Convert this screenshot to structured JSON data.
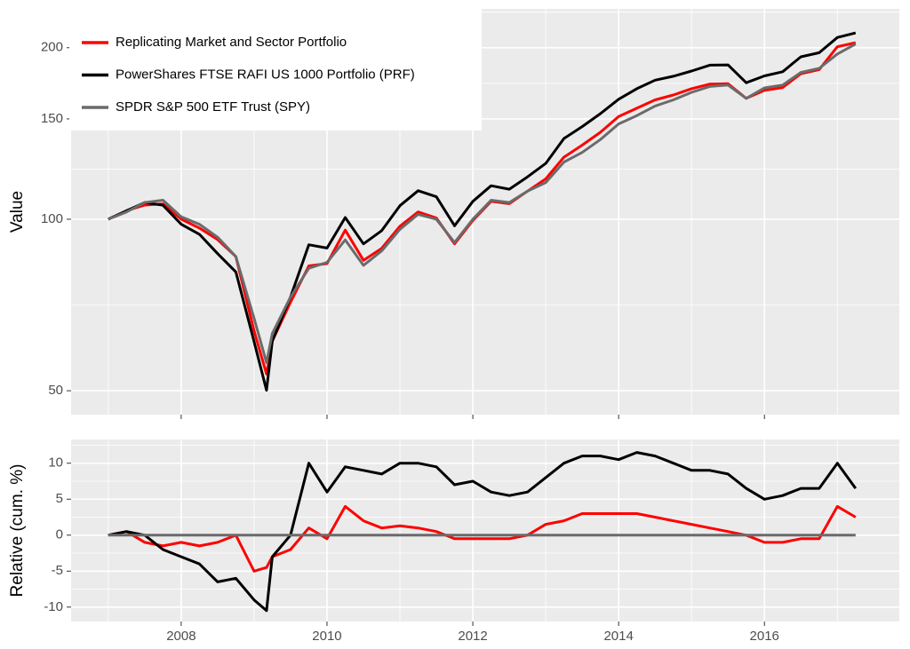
{
  "chart_data": [
    {
      "type": "line",
      "ylabel": "Value",
      "log_scale": true,
      "grid": true,
      "legend": "top-left",
      "xlim": [
        2006.49,
        2017.85
      ],
      "xticks": [
        2008,
        2010,
        2012,
        2014,
        2016
      ],
      "ylim": [
        45.4,
        234
      ],
      "yticks": [
        50,
        100,
        150,
        200
      ],
      "x": [
        2007,
        2007.25,
        2007.5,
        2007.75,
        2008,
        2008.25,
        2008.5,
        2008.75,
        2009,
        2009.17,
        2009.25,
        2009.5,
        2009.75,
        2010,
        2010.25,
        2010.5,
        2010.75,
        2011,
        2011.25,
        2011.5,
        2011.75,
        2012,
        2012.25,
        2012.5,
        2012.75,
        2013,
        2013.25,
        2013.5,
        2013.75,
        2014,
        2014.25,
        2014.5,
        2014.75,
        2015,
        2015.25,
        2015.5,
        2015.75,
        2016,
        2016.25,
        2016.5,
        2016.75,
        2017,
        2017.25
      ],
      "series": [
        {
          "name": "Replicating Market and Sector Portfolio",
          "color": "#ff0000",
          "values": [
            100,
            103.5,
            105.9,
            106.4,
            100,
            96.5,
            92.1,
            86,
            63.7,
            53.5,
            61.1,
            71.5,
            82.8,
            83.6,
            95.7,
            84.7,
            88.9,
            97.2,
            103,
            100.5,
            90.5,
            99.5,
            107.5,
            106.5,
            112,
            117.7,
            128.5,
            134.9,
            142.1,
            151.4,
            156.6,
            162,
            165.2,
            169.5,
            172.7,
            172.9,
            163,
            168.3,
            170.3,
            180.1,
            183.1,
            200.8,
            204.1
          ]
        },
        {
          "name": "PowerShares FTSE RAFI US 1000 Portfolio (PRF)",
          "color": "#000000",
          "values": [
            100,
            103.5,
            107,
            105.8,
            98,
            94.1,
            87,
            80.8,
            61,
            50.1,
            61.1,
            73,
            90.2,
            89,
            100.7,
            90.5,
            95.5,
            105.6,
            112.2,
            109.5,
            97.4,
            107.5,
            114.5,
            112.9,
            118.7,
            125.3,
            138.6,
            145.4,
            153.2,
            162.4,
            169.5,
            175.4,
            178.2,
            182,
            186.4,
            186.6,
            173.6,
            178.5,
            181.5,
            192.8,
            196,
            208.5,
            212.3
          ]
        },
        {
          "name": "SPDR S&P 500 ETF Trust (SPY)",
          "color": "#6b6b6b",
          "values": [
            100,
            103,
            107,
            108,
            101,
            98,
            93,
            86,
            67,
            56,
            63,
            73,
            82,
            84,
            92,
            83,
            88,
            96,
            102,
            100,
            91,
            100,
            108,
            107,
            112,
            116,
            126,
            131,
            138,
            147,
            152,
            158,
            162,
            167,
            171,
            172,
            163,
            170,
            172,
            181,
            184,
            195,
            203
          ]
        }
      ]
    },
    {
      "type": "line",
      "ylabel": "Relative (cum. %)",
      "grid": true,
      "xlim": [
        2006.49,
        2017.85
      ],
      "xticks": [
        2008,
        2010,
        2012,
        2014,
        2016
      ],
      "ylim": [
        -12,
        13.3
      ],
      "yticks": [
        -10,
        -5,
        0,
        5,
        10
      ],
      "x": [
        2007,
        2007.25,
        2007.5,
        2007.75,
        2008,
        2008.25,
        2008.5,
        2008.75,
        2009,
        2009.17,
        2009.25,
        2009.5,
        2009.75,
        2010,
        2010.25,
        2010.5,
        2010.75,
        2011,
        2011.25,
        2011.5,
        2011.75,
        2012,
        2012.25,
        2012.5,
        2012.75,
        2013,
        2013.25,
        2013.5,
        2013.75,
        2014,
        2014.25,
        2014.5,
        2014.75,
        2015,
        2015.25,
        2015.5,
        2015.75,
        2016,
        2016.25,
        2016.5,
        2016.75,
        2017,
        2017.25
      ],
      "series": [
        {
          "color": "#ff0000",
          "values": [
            0,
            0.5,
            -1,
            -1.5,
            -1,
            -1.5,
            -1,
            0,
            -5,
            -4.5,
            -3,
            -2,
            1,
            -0.5,
            4,
            2,
            1,
            1.3,
            1,
            0.5,
            -0.5,
            -0.5,
            -0.5,
            -0.5,
            0,
            1.5,
            2,
            3,
            3,
            3,
            3,
            2.5,
            2,
            1.5,
            1,
            0.5,
            0,
            -1,
            -1,
            -0.5,
            -0.5,
            4,
            2.5
          ]
        },
        {
          "color": "#000000",
          "values": [
            0,
            0.5,
            0,
            -2,
            -3,
            -4,
            -6.5,
            -6,
            -9,
            -10.5,
            -3,
            0,
            10,
            6,
            9.5,
            9,
            8.5,
            10,
            10,
            9.5,
            7,
            7.5,
            6,
            5.5,
            6,
            8,
            10,
            11,
            11,
            10.5,
            11.5,
            11,
            10,
            9,
            9,
            8.5,
            6.5,
            5,
            5.5,
            6.5,
            6.5,
            10,
            6.5
          ]
        },
        {
          "color": "#6b6b6b",
          "values": [
            0,
            0,
            0,
            0,
            0,
            0,
            0,
            0,
            0,
            0,
            0,
            0,
            0,
            0,
            0,
            0,
            0,
            0,
            0,
            0,
            0,
            0,
            0,
            0,
            0,
            0,
            0,
            0,
            0,
            0,
            0,
            0,
            0,
            0,
            0,
            0,
            0,
            0,
            0,
            0,
            0,
            0,
            0
          ]
        }
      ]
    }
  ]
}
